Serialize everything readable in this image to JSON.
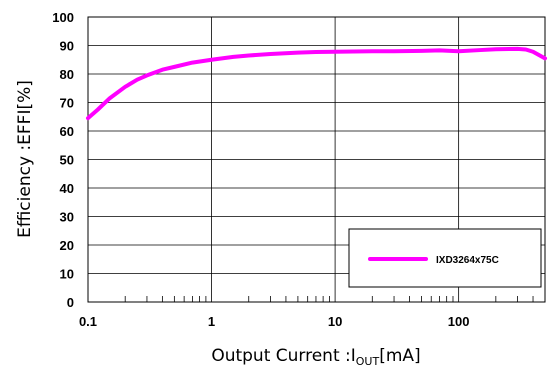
{
  "chart_data": {
    "type": "line",
    "title": "",
    "xlabel": "Output Current :I",
    "xlabel_sub": "OUT",
    "xlabel_unit": "[mA]",
    "ylabel": "Efficiency :EFFI[%]",
    "xscale": "log",
    "xlim": [
      0.1,
      500
    ],
    "ylim": [
      0,
      100
    ],
    "x_ticks": [
      "0.1",
      "1",
      "10",
      "100"
    ],
    "x_tick_values": [
      0.1,
      1,
      10,
      100
    ],
    "y_ticks": [
      "0",
      "10",
      "20",
      "30",
      "40",
      "50",
      "60",
      "70",
      "80",
      "90",
      "100"
    ],
    "y_tick_values": [
      0,
      10,
      20,
      30,
      40,
      50,
      60,
      70,
      80,
      90,
      100
    ],
    "grid": true,
    "legend_position": "bottom-right",
    "series": [
      {
        "name": "IXD3264x75C",
        "color": "#ff00ff",
        "x": [
          0.1,
          0.12,
          0.15,
          0.2,
          0.25,
          0.3,
          0.4,
          0.5,
          0.7,
          1,
          1.5,
          2,
          3,
          5,
          7,
          10,
          20,
          30,
          50,
          70,
          100,
          150,
          200,
          300,
          350,
          400,
          500
        ],
        "y": [
          64.5,
          67.5,
          71.5,
          75.5,
          78,
          79.5,
          81.5,
          82.5,
          84,
          85,
          86,
          86.5,
          87,
          87.5,
          87.7,
          87.8,
          88,
          88,
          88.1,
          88.3,
          88,
          88.4,
          88.7,
          88.8,
          88.6,
          87.8,
          85.5
        ]
      }
    ]
  }
}
